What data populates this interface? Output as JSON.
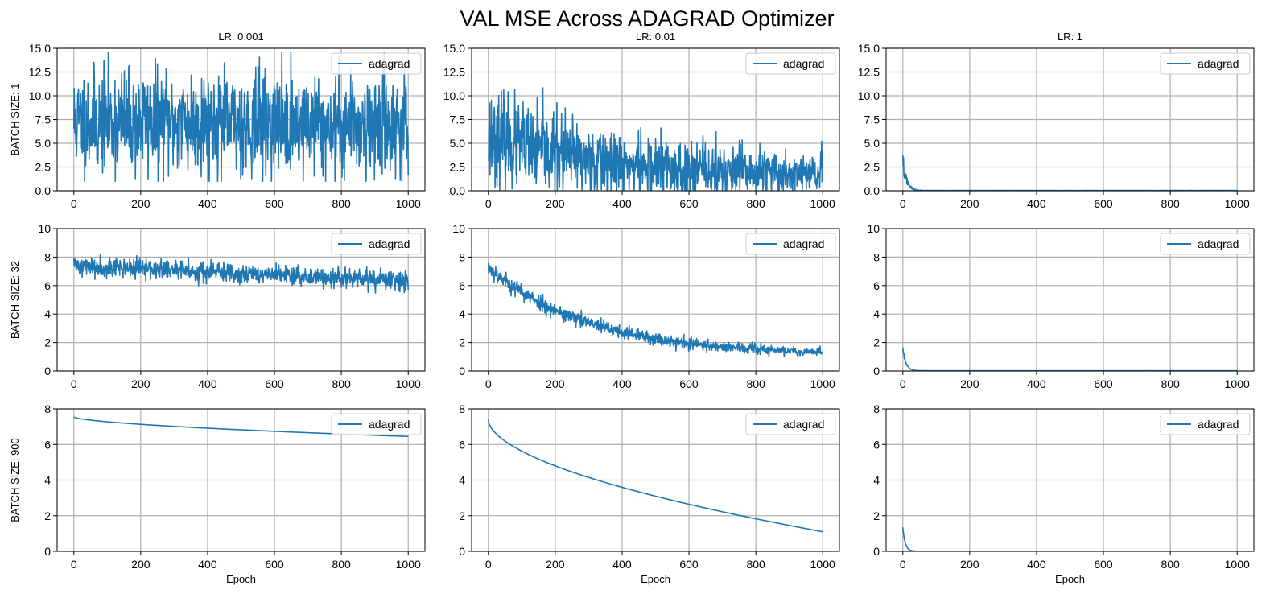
{
  "figure": {
    "title": "VAL MSE Across ADAGRAD Optimizer"
  },
  "colors": {
    "series": "#1f77b4",
    "grid": "#b0b0b0",
    "axis": "#000000",
    "background": "#ffffff"
  },
  "chart_data": [
    {
      "type": "line",
      "row": 0,
      "col": 0,
      "title": "LR: 0.001",
      "ylabel": "BATCH SIZE: 1",
      "xlabel": "",
      "xlim": [
        -50,
        1050
      ],
      "ylim": [
        0,
        15
      ],
      "xticks": [
        0,
        200,
        400,
        600,
        800,
        1000
      ],
      "yticks": [
        0.0,
        2.5,
        5.0,
        7.5,
        10.0,
        12.5,
        15.0
      ],
      "ytick_decimals": 1,
      "grid": true,
      "legend": {
        "label": "adagrad",
        "loc": "upper right"
      },
      "series": [
        {
          "name": "adagrad",
          "pattern": "noise",
          "x": [
            0,
            1000
          ],
          "center": [
            7.3,
            7.0
          ],
          "noise_sd": [
            2.7,
            2.7
          ],
          "clip": [
            1.0,
            14.6
          ],
          "seed": 11
        }
      ]
    },
    {
      "type": "line",
      "row": 0,
      "col": 1,
      "title": "LR: 0.01",
      "ylabel": "",
      "xlabel": "",
      "xlim": [
        -50,
        1050
      ],
      "ylim": [
        0,
        15
      ],
      "xticks": [
        0,
        200,
        400,
        600,
        800,
        1000
      ],
      "yticks": [
        0.0,
        2.5,
        5.0,
        7.5,
        10.0,
        12.5,
        15.0
      ],
      "ytick_decimals": 1,
      "grid": true,
      "legend": {
        "label": "adagrad",
        "loc": "upper right"
      },
      "series": [
        {
          "name": "adagrad",
          "pattern": "noise",
          "x": [
            0,
            1000
          ],
          "center": [
            5.8,
            1.5
          ],
          "noise_sd": [
            2.4,
            1.1
          ],
          "decay": 330,
          "clip": [
            0.1,
            12.2
          ],
          "seed": 23
        }
      ]
    },
    {
      "type": "line",
      "row": 0,
      "col": 2,
      "title": "LR: 1",
      "ylabel": "",
      "xlabel": "",
      "xlim": [
        -50,
        1050
      ],
      "ylim": [
        0,
        15
      ],
      "xticks": [
        0,
        200,
        400,
        600,
        800,
        1000
      ],
      "yticks": [
        0.0,
        2.5,
        5.0,
        7.5,
        10.0,
        12.5,
        15.0
      ],
      "ytick_decimals": 1,
      "grid": true,
      "legend": {
        "label": "adagrad",
        "loc": "upper right"
      },
      "series": [
        {
          "name": "adagrad",
          "pattern": "spike",
          "x": [
            0,
            1000
          ],
          "start": 3.8,
          "end": 0.03,
          "tau": 10,
          "noise_frac": 0.45,
          "seed": 37
        }
      ]
    },
    {
      "type": "line",
      "row": 1,
      "col": 0,
      "title": "",
      "ylabel": "BATCH SIZE: 32",
      "xlabel": "",
      "xlim": [
        -50,
        1050
      ],
      "ylim": [
        0,
        10
      ],
      "xticks": [
        0,
        200,
        400,
        600,
        800,
        1000
      ],
      "yticks": [
        0,
        2,
        4,
        6,
        8,
        10
      ],
      "ytick_decimals": 0,
      "grid": true,
      "legend": {
        "label": "adagrad",
        "loc": "upper right"
      },
      "series": [
        {
          "name": "adagrad",
          "pattern": "noise",
          "x": [
            0,
            1000
          ],
          "center": [
            7.4,
            6.3
          ],
          "noise_sd": [
            0.35,
            0.35
          ],
          "clip": [
            5.2,
            8.3
          ],
          "seed": 41
        }
      ]
    },
    {
      "type": "line",
      "row": 1,
      "col": 1,
      "title": "",
      "ylabel": "",
      "xlabel": "",
      "xlim": [
        -50,
        1050
      ],
      "ylim": [
        0,
        10
      ],
      "xticks": [
        0,
        200,
        400,
        600,
        800,
        1000
      ],
      "yticks": [
        0,
        2,
        4,
        6,
        8,
        10
      ],
      "ytick_decimals": 0,
      "grid": true,
      "legend": {
        "label": "adagrad",
        "loc": "upper right"
      },
      "series": [
        {
          "name": "adagrad",
          "pattern": "noise",
          "x": [
            0,
            1000
          ],
          "center": [
            7.3,
            1.1
          ],
          "noise_sd": [
            0.3,
            0.15
          ],
          "decay": 300,
          "clip": [
            0.7,
            7.6
          ],
          "seed": 53
        }
      ]
    },
    {
      "type": "line",
      "row": 1,
      "col": 2,
      "title": "",
      "ylabel": "",
      "xlabel": "",
      "xlim": [
        -50,
        1050
      ],
      "ylim": [
        0,
        10
      ],
      "xticks": [
        0,
        200,
        400,
        600,
        800,
        1000
      ],
      "yticks": [
        0,
        2,
        4,
        6,
        8,
        10
      ],
      "ytick_decimals": 0,
      "grid": true,
      "legend": {
        "label": "adagrad",
        "loc": "upper right"
      },
      "series": [
        {
          "name": "adagrad",
          "pattern": "spike",
          "x": [
            0,
            1000
          ],
          "start": 1.65,
          "end": 0.02,
          "tau": 9,
          "noise_frac": 0.12,
          "seed": 67
        }
      ]
    },
    {
      "type": "line",
      "row": 2,
      "col": 0,
      "title": "",
      "ylabel": "BATCH SIZE: 900",
      "xlabel": "Epoch",
      "xlim": [
        -50,
        1050
      ],
      "ylim": [
        0,
        8
      ],
      "xticks": [
        0,
        200,
        400,
        600,
        800,
        1000
      ],
      "yticks": [
        0,
        2,
        4,
        6,
        8
      ],
      "ytick_decimals": 0,
      "grid": true,
      "legend": {
        "label": "adagrad",
        "loc": "upper right"
      },
      "series": [
        {
          "name": "adagrad",
          "pattern": "smooth",
          "x": [
            0,
            1000
          ],
          "start": 7.55,
          "end": 6.45,
          "shape": 0.6
        }
      ]
    },
    {
      "type": "line",
      "row": 2,
      "col": 1,
      "title": "",
      "ylabel": "",
      "xlabel": "Epoch",
      "xlim": [
        -50,
        1050
      ],
      "ylim": [
        0,
        8
      ],
      "xticks": [
        0,
        200,
        400,
        600,
        800,
        1000
      ],
      "yticks": [
        0,
        2,
        4,
        6,
        8
      ],
      "ytick_decimals": 0,
      "grid": true,
      "legend": {
        "label": "adagrad",
        "loc": "upper right"
      },
      "series": [
        {
          "name": "adagrad",
          "pattern": "smooth",
          "x": [
            0,
            1000
          ],
          "start": 7.4,
          "end": 1.1,
          "shape": 0.55
        }
      ]
    },
    {
      "type": "line",
      "row": 2,
      "col": 2,
      "title": "",
      "ylabel": "",
      "xlabel": "Epoch",
      "xlim": [
        -50,
        1050
      ],
      "ylim": [
        0,
        8
      ],
      "xticks": [
        0,
        200,
        400,
        600,
        800,
        1000
      ],
      "yticks": [
        0,
        2,
        4,
        6,
        8
      ],
      "ytick_decimals": 0,
      "grid": true,
      "legend": {
        "label": "adagrad",
        "loc": "upper right"
      },
      "series": [
        {
          "name": "adagrad",
          "pattern": "spike",
          "x": [
            0,
            1000
          ],
          "start": 1.35,
          "end": 0.01,
          "tau": 7,
          "noise_frac": 0.0
        }
      ]
    }
  ]
}
